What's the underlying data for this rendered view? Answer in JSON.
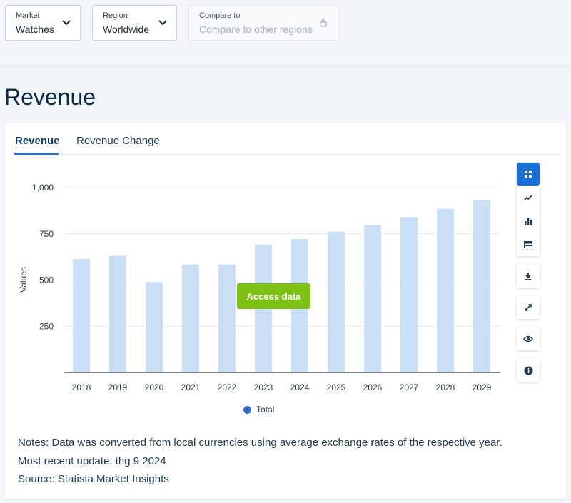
{
  "filters": {
    "market": {
      "label": "Market",
      "value": "Watches"
    },
    "region": {
      "label": "Region",
      "value": "Worldwide"
    },
    "compare": {
      "label": "Compare to",
      "placeholder": "Compare to other regions"
    }
  },
  "page_title": "Revenue",
  "tabs": [
    {
      "label": "Revenue",
      "active": true
    },
    {
      "label": "Revenue Change",
      "active": false
    }
  ],
  "access_button": "Access data",
  "legend_label": "Total",
  "notes": [
    "Notes: Data was converted from local currencies using average exchange rates of the respective year.",
    "Most recent update: thg 9 2024",
    "Source: Statista Market Insights"
  ],
  "toolbar_icons": [
    "dashboard-icon",
    "line-chart-icon",
    "bar-chart-icon",
    "table-icon",
    "download-icon",
    "expand-icon",
    "eye-icon",
    "info-icon"
  ],
  "colors": {
    "bar": "#cadef5",
    "accent": "#1a6fd7",
    "access": "#7cc113",
    "legend_dot": "#2d6fcb"
  },
  "chart_data": {
    "type": "bar",
    "categories": [
      "2018",
      "2019",
      "2020",
      "2021",
      "2022",
      "2023",
      "2024",
      "2025",
      "2026",
      "2027",
      "2028",
      "2029"
    ],
    "series": [
      {
        "name": "Total",
        "values": [
          614,
          631,
          489,
          584,
          584,
          692,
          722,
          762,
          796,
          840,
          885,
          932
        ]
      }
    ],
    "ylabel": "Values",
    "xlabel": "",
    "ylim": [
      0,
      1000
    ],
    "yticks": [
      "250",
      "500",
      "750",
      "1,000"
    ],
    "grid": true,
    "legend_position": "bottom-center"
  }
}
